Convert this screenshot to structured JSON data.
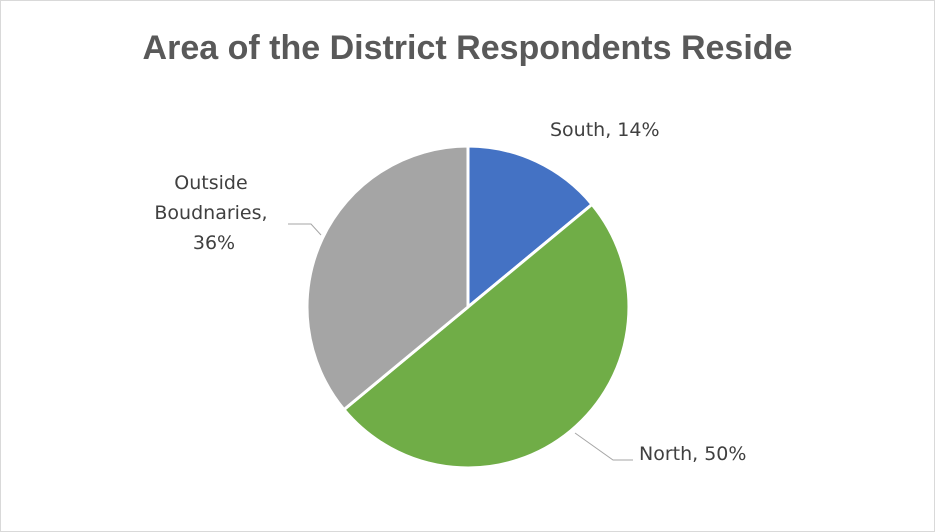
{
  "chart_data": {
    "type": "pie",
    "title": "Area of the District Respondents Reside",
    "categories": [
      "South",
      "North",
      "Outside Boudnaries"
    ],
    "values": [
      14,
      50,
      36
    ],
    "unit": "%",
    "colors": [
      "#4472C4",
      "#70AD47",
      "#A5A5A5"
    ],
    "labels": {
      "south": [
        "South, 14%"
      ],
      "north": [
        "North, 50%"
      ],
      "outside": [
        "Outside",
        "Boudnaries,",
        "36%"
      ]
    },
    "legend": "none"
  }
}
